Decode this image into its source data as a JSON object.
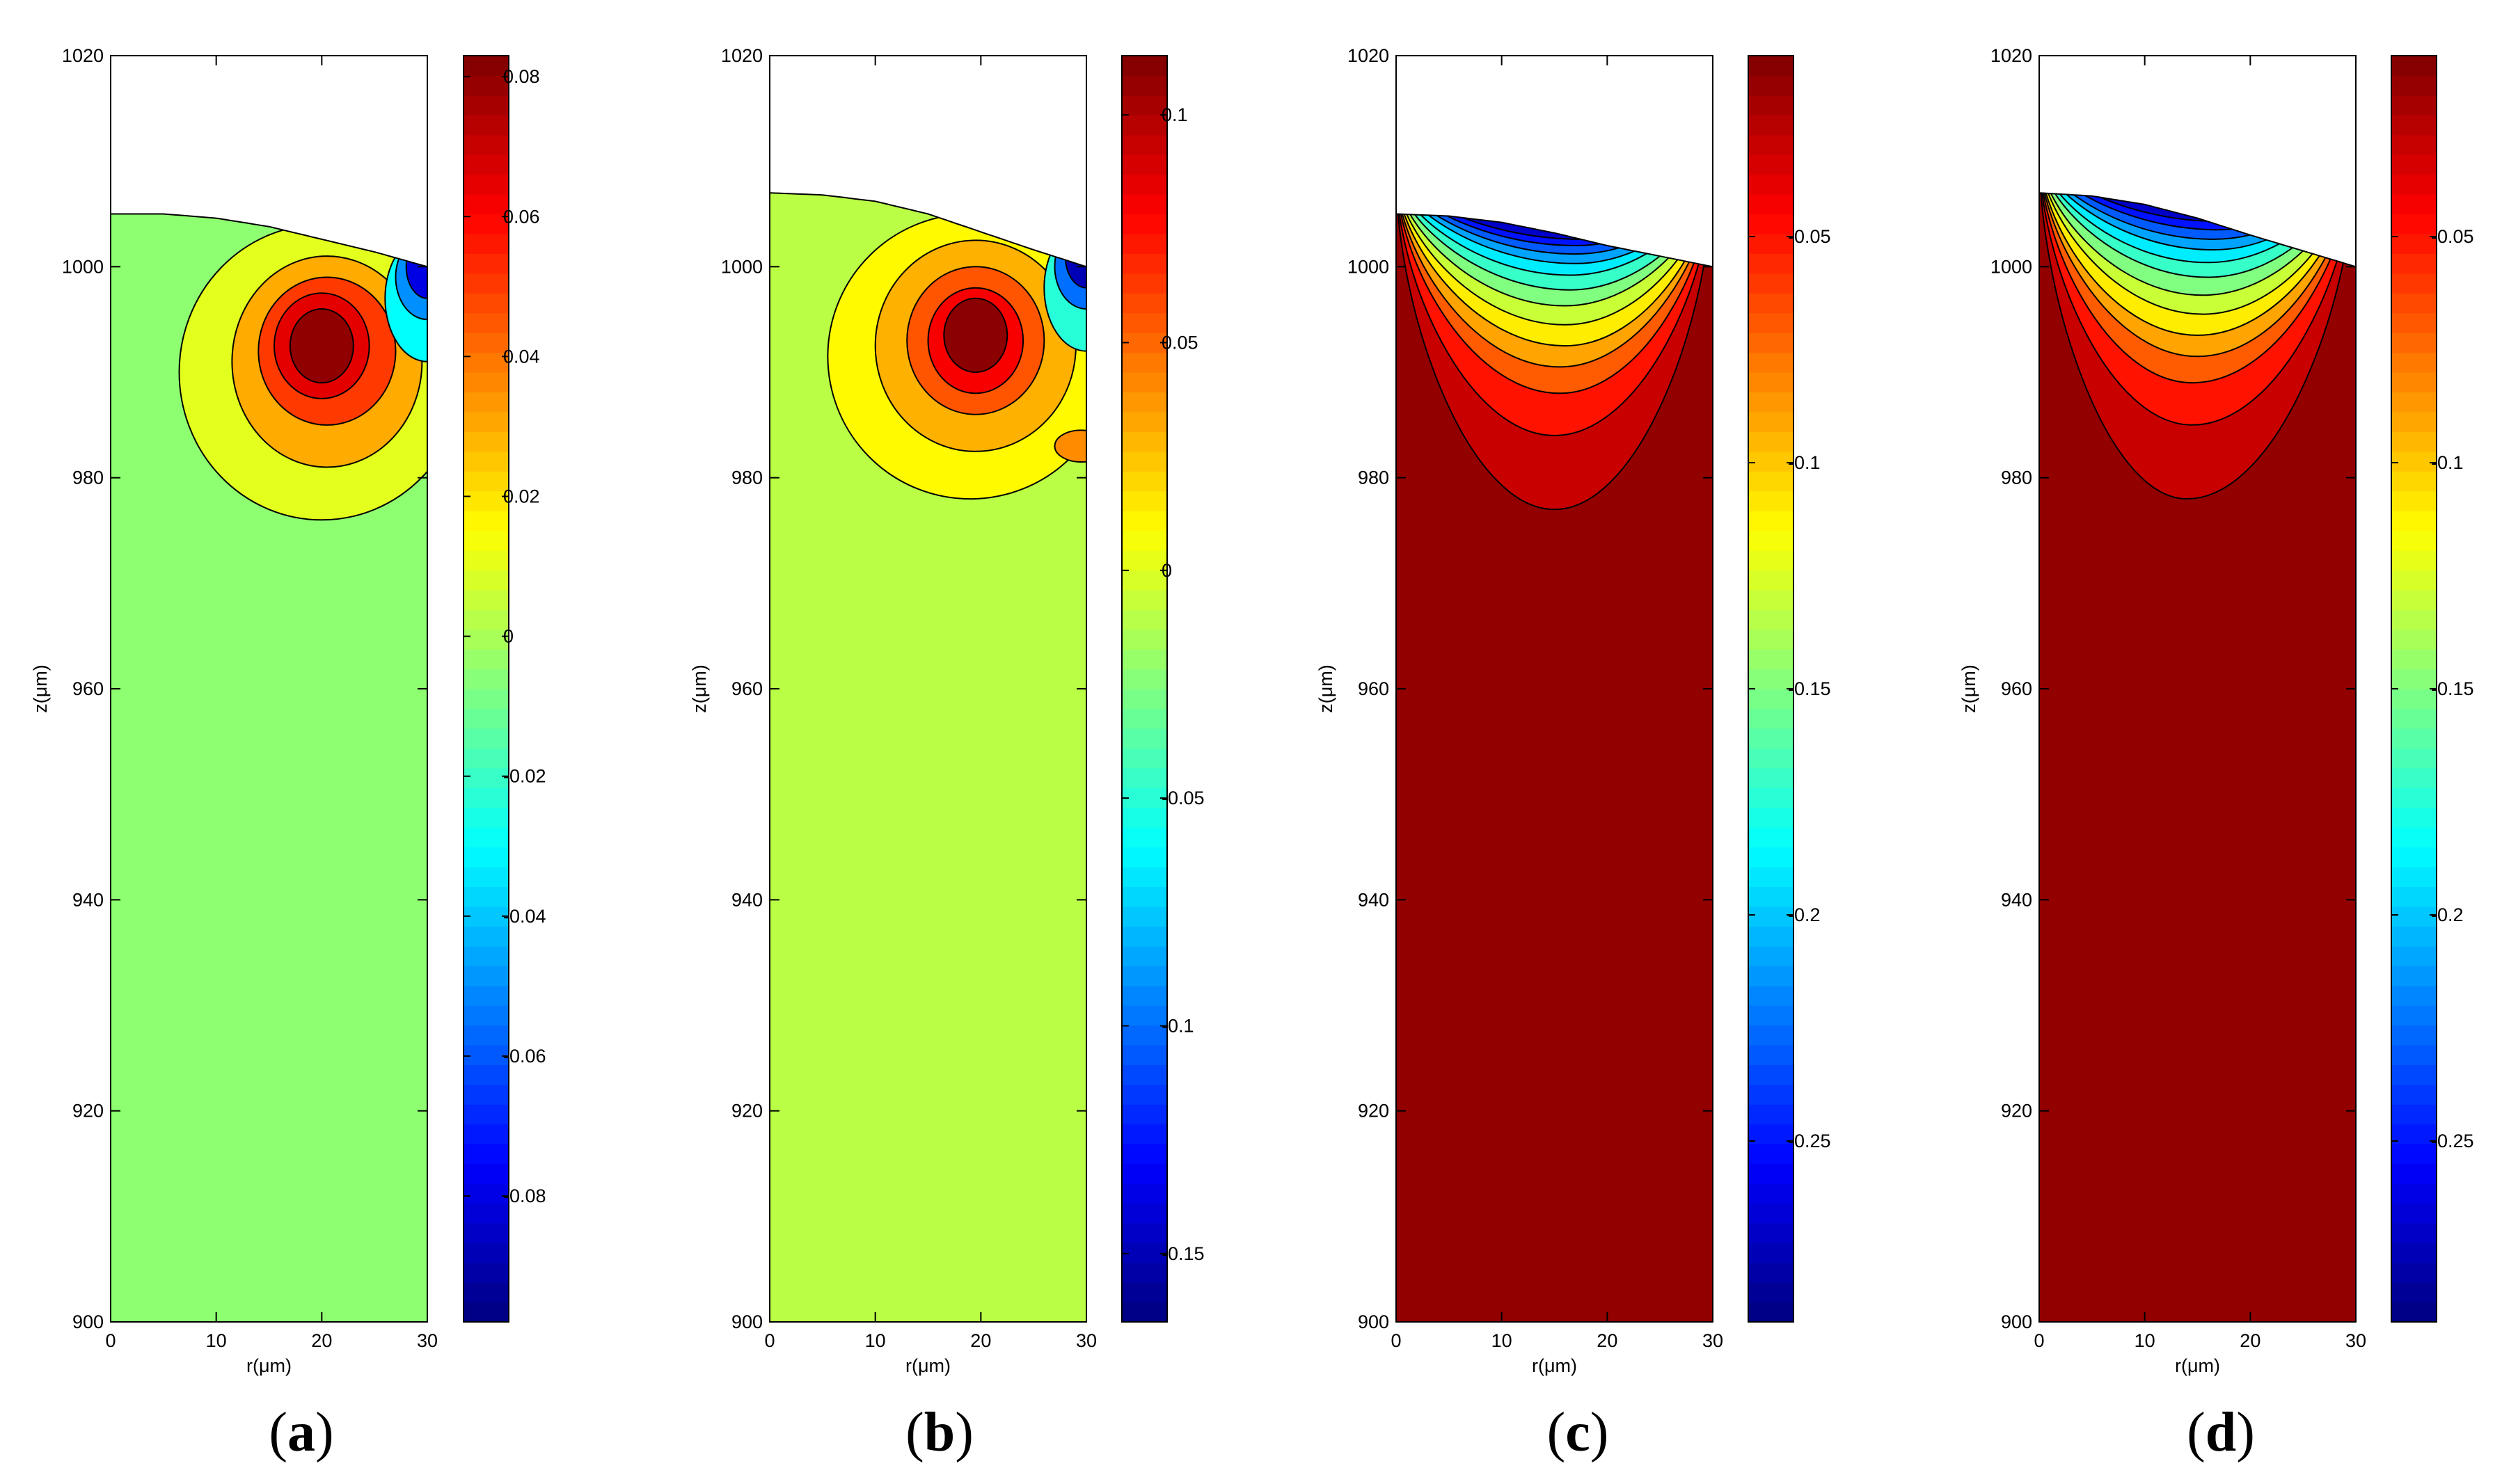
{
  "chart_data": [
    {
      "type": "contour",
      "panel_label": "a",
      "xlabel": "r(μm)",
      "ylabel": "z(μm)",
      "xlim": [
        0,
        30
      ],
      "ylim": [
        900,
        1020
      ],
      "xticks": [
        "0",
        "10",
        "20",
        "30"
      ],
      "yticks": [
        "900",
        "920",
        "940",
        "960",
        "980",
        "1000",
        "1020"
      ],
      "surface": [
        [
          0,
          1005
        ],
        [
          5,
          1005
        ],
        [
          10,
          1004.6
        ],
        [
          15,
          1003.8
        ],
        [
          20,
          1002.6
        ],
        [
          25,
          1001.4
        ],
        [
          30,
          1000
        ]
      ],
      "background_value": -0.005,
      "features": [
        {
          "shape": "blob",
          "value": 0.01,
          "cx": 20,
          "cy": 990,
          "rx": 13.5,
          "ry": 14
        },
        {
          "shape": "blob",
          "value": 0.03,
          "cx": 20.5,
          "cy": 991,
          "rx": 9,
          "ry": 10
        },
        {
          "shape": "blob",
          "value": 0.05,
          "cx": 20.5,
          "cy": 992,
          "rx": 6.5,
          "ry": 7
        },
        {
          "shape": "blob",
          "value": 0.065,
          "cx": 20,
          "cy": 992.5,
          "rx": 4.5,
          "ry": 5
        },
        {
          "shape": "blob",
          "value": 0.08,
          "cx": 20,
          "cy": 992.5,
          "rx": 3,
          "ry": 3.5
        },
        {
          "shape": "blob",
          "value": -0.03,
          "cx": 30,
          "cy": 997,
          "rx": 4,
          "ry": 6
        },
        {
          "shape": "blob",
          "value": -0.05,
          "cx": 30,
          "cy": 999,
          "rx": 3,
          "ry": 4
        },
        {
          "shape": "blob",
          "value": -0.08,
          "cx": 30,
          "cy": 1000,
          "rx": 2,
          "ry": 3
        }
      ],
      "colorbar": {
        "min": -0.098,
        "max": 0.083,
        "ticks": [
          "0.08",
          "0.06",
          "0.04",
          "0.02",
          "0",
          "-0.02",
          "-0.04",
          "-0.06",
          "-0.08"
        ],
        "tick_values": [
          0.08,
          0.06,
          0.04,
          0.02,
          0,
          -0.02,
          -0.04,
          -0.06,
          -0.08
        ]
      }
    },
    {
      "type": "contour",
      "panel_label": "b",
      "xlabel": "r(μm)",
      "ylabel": "z(μm)",
      "xlim": [
        0,
        30
      ],
      "ylim": [
        900,
        1020
      ],
      "xticks": [
        "0",
        "10",
        "20",
        "30"
      ],
      "yticks": [
        "900",
        "920",
        "940",
        "960",
        "980",
        "1000",
        "1020"
      ],
      "surface": [
        [
          0,
          1007
        ],
        [
          5,
          1006.8
        ],
        [
          10,
          1006.2
        ],
        [
          15,
          1005
        ],
        [
          20,
          1003.3
        ],
        [
          25,
          1001.6
        ],
        [
          30,
          1000
        ]
      ],
      "background_value": -0.01,
      "features": [
        {
          "shape": "blob",
          "value": 0.01,
          "cx": 19,
          "cy": 991.5,
          "rx": 13.5,
          "ry": 13.5
        },
        {
          "shape": "blob",
          "value": 0.03,
          "cx": 19.5,
          "cy": 992.5,
          "rx": 9.5,
          "ry": 10
        },
        {
          "shape": "blob",
          "value": 0.055,
          "cx": 19.5,
          "cy": 993,
          "rx": 6.5,
          "ry": 7
        },
        {
          "shape": "blob",
          "value": 0.08,
          "cx": 19.5,
          "cy": 993,
          "rx": 4.5,
          "ry": 5
        },
        {
          "shape": "blob",
          "value": 0.11,
          "cx": 19.5,
          "cy": 993.5,
          "rx": 3,
          "ry": 3.5
        },
        {
          "shape": "blob",
          "value": 0.04,
          "cx": 29.5,
          "cy": 983,
          "rx": 2.5,
          "ry": 1.5
        },
        {
          "shape": "blob",
          "value": -0.05,
          "cx": 30,
          "cy": 998,
          "rx": 4,
          "ry": 6
        },
        {
          "shape": "blob",
          "value": -0.1,
          "cx": 30,
          "cy": 1000,
          "rx": 3,
          "ry": 4
        },
        {
          "shape": "blob",
          "value": -0.15,
          "cx": 30,
          "cy": 1001,
          "rx": 2,
          "ry": 3
        }
      ],
      "colorbar": {
        "min": -0.165,
        "max": 0.113,
        "ticks": [
          "0.1",
          "0.05",
          "0",
          "-0.05",
          "-0.1",
          "-0.15"
        ],
        "tick_values": [
          0.1,
          0.05,
          0,
          -0.05,
          -0.1,
          -0.15
        ]
      }
    },
    {
      "type": "contour",
      "panel_label": "c",
      "xlabel": "r(μm)",
      "ylabel": "z(μm)",
      "xlim": [
        0,
        30
      ],
      "ylim": [
        900,
        1020
      ],
      "xticks": [
        "0",
        "10",
        "20",
        "30"
      ],
      "yticks": [
        "900",
        "920",
        "940",
        "960",
        "980",
        "1000",
        "1020"
      ],
      "surface": [
        [
          0,
          1005
        ],
        [
          5,
          1004.8
        ],
        [
          10,
          1004.2
        ],
        [
          15,
          1003.2
        ],
        [
          20,
          1002
        ],
        [
          25,
          1001
        ],
        [
          30,
          1000
        ]
      ],
      "background_value": -0.015,
      "features": [
        {
          "shape": "bowl",
          "value": -0.03,
          "cx": 15,
          "y_bottom": 977
        },
        {
          "shape": "bowl",
          "value": -0.05,
          "cx": 15,
          "y_bottom": 984
        },
        {
          "shape": "bowl",
          "value": -0.07,
          "cx": 15.5,
          "y_bottom": 988
        },
        {
          "shape": "bowl",
          "value": -0.09,
          "cx": 15.5,
          "y_bottom": 990.5
        },
        {
          "shape": "bowl",
          "value": -0.11,
          "cx": 16,
          "y_bottom": 992.5
        },
        {
          "shape": "bowl",
          "value": -0.13,
          "cx": 16,
          "y_bottom": 994.5
        },
        {
          "shape": "bowl",
          "value": -0.15,
          "cx": 16,
          "y_bottom": 996.3
        },
        {
          "shape": "bowl",
          "value": -0.17,
          "cx": 16.5,
          "y_bottom": 997.8
        },
        {
          "shape": "bowl",
          "value": -0.19,
          "cx": 16.5,
          "y_bottom": 999.2
        },
        {
          "shape": "bowl",
          "value": -0.21,
          "cx": 17,
          "y_bottom": 1000.3
        },
        {
          "shape": "bowl",
          "value": -0.23,
          "cx": 17,
          "y_bottom": 1001.2
        },
        {
          "shape": "bowl",
          "value": -0.25,
          "cx": 17,
          "y_bottom": 1002
        },
        {
          "shape": "bowl",
          "value": -0.27,
          "cx": 17.5,
          "y_bottom": 1002.6
        }
      ],
      "colorbar": {
        "min": -0.29,
        "max": -0.01,
        "ticks": [
          "-0.05",
          "-0.1",
          "-0.15",
          "-0.2",
          "-0.25"
        ],
        "tick_values": [
          -0.05,
          -0.1,
          -0.15,
          -0.2,
          -0.25
        ]
      }
    },
    {
      "type": "contour",
      "panel_label": "d",
      "xlabel": "r(μm)",
      "ylabel": "z(μm)",
      "xlim": [
        0,
        30
      ],
      "ylim": [
        900,
        1020
      ],
      "xticks": [
        "0",
        "10",
        "20",
        "30"
      ],
      "yticks": [
        "900",
        "920",
        "940",
        "960",
        "980",
        "1000",
        "1020"
      ],
      "surface": [
        [
          0,
          1007
        ],
        [
          5,
          1006.7
        ],
        [
          10,
          1005.9
        ],
        [
          15,
          1004.6
        ],
        [
          20,
          1003
        ],
        [
          25,
          1001.5
        ],
        [
          30,
          1000
        ]
      ],
      "background_value": -0.015,
      "features": [
        {
          "shape": "bowl",
          "value": -0.03,
          "cx": 14,
          "y_bottom": 978
        },
        {
          "shape": "bowl",
          "value": -0.05,
          "cx": 14.5,
          "y_bottom": 985
        },
        {
          "shape": "bowl",
          "value": -0.07,
          "cx": 14.5,
          "y_bottom": 989
        },
        {
          "shape": "bowl",
          "value": -0.09,
          "cx": 15,
          "y_bottom": 991.5
        },
        {
          "shape": "bowl",
          "value": -0.11,
          "cx": 15,
          "y_bottom": 993.5
        },
        {
          "shape": "bowl",
          "value": -0.13,
          "cx": 15.5,
          "y_bottom": 995.5
        },
        {
          "shape": "bowl",
          "value": -0.15,
          "cx": 15.5,
          "y_bottom": 997.3
        },
        {
          "shape": "bowl",
          "value": -0.17,
          "cx": 16,
          "y_bottom": 999
        },
        {
          "shape": "bowl",
          "value": -0.19,
          "cx": 16,
          "y_bottom": 1000.4
        },
        {
          "shape": "bowl",
          "value": -0.21,
          "cx": 16.5,
          "y_bottom": 1001.6
        },
        {
          "shape": "bowl",
          "value": -0.23,
          "cx": 16.5,
          "y_bottom": 1002.6
        },
        {
          "shape": "bowl",
          "value": -0.25,
          "cx": 17,
          "y_bottom": 1003.5
        },
        {
          "shape": "bowl",
          "value": -0.27,
          "cx": 17,
          "y_bottom": 1004.3
        }
      ],
      "colorbar": {
        "min": -0.29,
        "max": -0.01,
        "ticks": [
          "-0.05",
          "-0.1",
          "-0.15",
          "-0.2",
          "-0.25"
        ],
        "tick_values": [
          -0.05,
          -0.1,
          -0.15,
          -0.2,
          -0.25
        ]
      }
    }
  ]
}
